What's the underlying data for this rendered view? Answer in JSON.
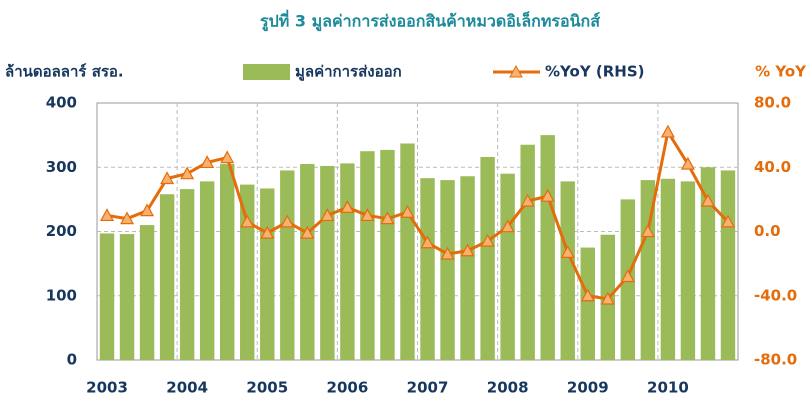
{
  "chart_data": {
    "type": "bar_line",
    "title": "รูปที่ 3 มูลค่าการส่งออกสินค้าหมวดอิเล็กทรอนิกส์",
    "y_label": "ล้านดอลลาร์ สรอ.",
    "y2_label": "% YoY",
    "categories": [
      "2003",
      null,
      null,
      null,
      "2004",
      null,
      null,
      null,
      "2005",
      null,
      null,
      null,
      "2006",
      null,
      null,
      null,
      "2007",
      null,
      null,
      null,
      "2008",
      null,
      null,
      null,
      "2009",
      null,
      null,
      null,
      "2010",
      null,
      null,
      null
    ],
    "series": [
      {
        "name": "มูลค่าการส่งออก",
        "type": "bar",
        "color": "#9bbb59",
        "values": [
          197,
          196,
          210,
          258,
          266,
          278,
          305,
          273,
          267,
          295,
          305,
          302,
          306,
          325,
          327,
          337,
          283,
          280,
          286,
          316,
          290,
          335,
          350,
          278,
          175,
          195,
          250,
          280,
          282,
          278,
          300,
          295
        ]
      },
      {
        "name": "%YoY (RHS)",
        "type": "line",
        "axis": "y2",
        "color": "#e46c0a",
        "marker_color": "#f9b171",
        "values": [
          10,
          8,
          13,
          33,
          36,
          43,
          46,
          6,
          -1,
          6,
          -1,
          10,
          15,
          10,
          8,
          12,
          -7,
          -14,
          -12,
          -6,
          3,
          19,
          22,
          -13,
          -40,
          -42,
          -28,
          0,
          62,
          42,
          19,
          6
        ]
      }
    ],
    "ylim": [
      0,
      400
    ],
    "yticks": [
      0,
      100,
      200,
      300,
      400
    ],
    "y2lim": [
      -80,
      80
    ],
    "y2ticks": [
      {
        "value": -80,
        "label": "-80.0"
      },
      {
        "value": -40,
        "label": "-40.0"
      },
      {
        "value": 0,
        "label": "0.0"
      },
      {
        "value": 40,
        "label": "40.0"
      },
      {
        "value": 80,
        "label": "80.0"
      }
    ],
    "grid": true
  }
}
